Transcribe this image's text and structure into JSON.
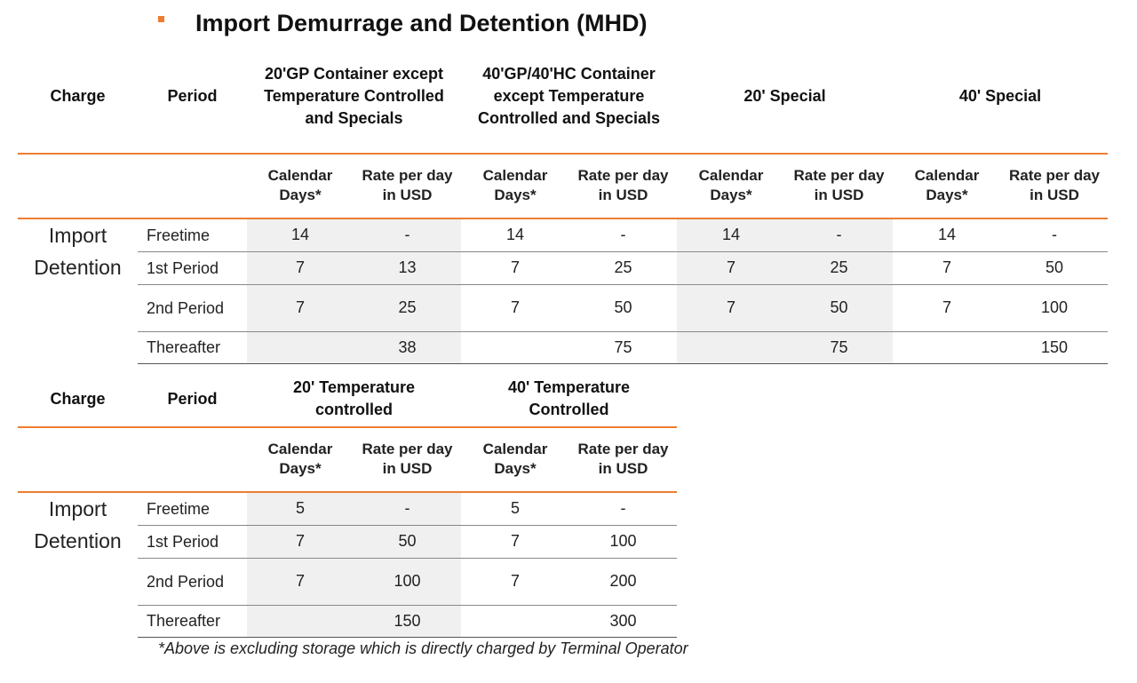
{
  "page": {
    "title": "Import Demurrage and Detention (MHD)",
    "bullet_color": "#ed7d31",
    "accent_color": "#ed7d31",
    "shade_color": "#f0f0f0",
    "footnote": "*Above is excluding storage which is directly charged by Terminal Operator"
  },
  "table1": {
    "headers": {
      "charge": "Charge",
      "period": "Period",
      "groups": [
        "20'GP Container except Temperature Controlled and Specials",
        "40'GP/40'HC Container except Temperature Controlled and Specials",
        "20' Special",
        "40' Special"
      ]
    },
    "subheaders": [
      "Calendar Days*",
      "Rate per day in USD"
    ],
    "charge_label": "Import Detention",
    "rows": [
      {
        "period": "Freetime",
        "values": [
          "14",
          "-",
          "14",
          "-",
          "14",
          "-",
          "14",
          "-"
        ]
      },
      {
        "period": "1st Period",
        "values": [
          "7",
          "13",
          "7",
          "25",
          "7",
          "25",
          "7",
          "50"
        ]
      },
      {
        "period": "2nd Period",
        "values": [
          "7",
          "25",
          "7",
          "50",
          "7",
          "50",
          "7",
          "100"
        ]
      },
      {
        "period": "Thereafter",
        "values": [
          "",
          "38",
          "",
          "75",
          "",
          "75",
          "",
          "150"
        ]
      }
    ]
  },
  "table2": {
    "headers": {
      "charge": "Charge",
      "period": "Period",
      "groups": [
        "20' Temperature controlled",
        "40' Temperature Controlled"
      ]
    },
    "subheaders": [
      "Calendar Days*",
      "Rate per day in USD"
    ],
    "charge_label": "Import Detention",
    "rows": [
      {
        "period": "Freetime",
        "values": [
          "5",
          "-",
          "5",
          "-"
        ]
      },
      {
        "period": "1st Period",
        "values": [
          "7",
          "50",
          "7",
          "100"
        ]
      },
      {
        "period": "2nd Period",
        "values": [
          "7",
          "100",
          "7",
          "200"
        ]
      },
      {
        "period": "Thereafter",
        "values": [
          "",
          "150",
          "",
          "300"
        ]
      }
    ]
  }
}
